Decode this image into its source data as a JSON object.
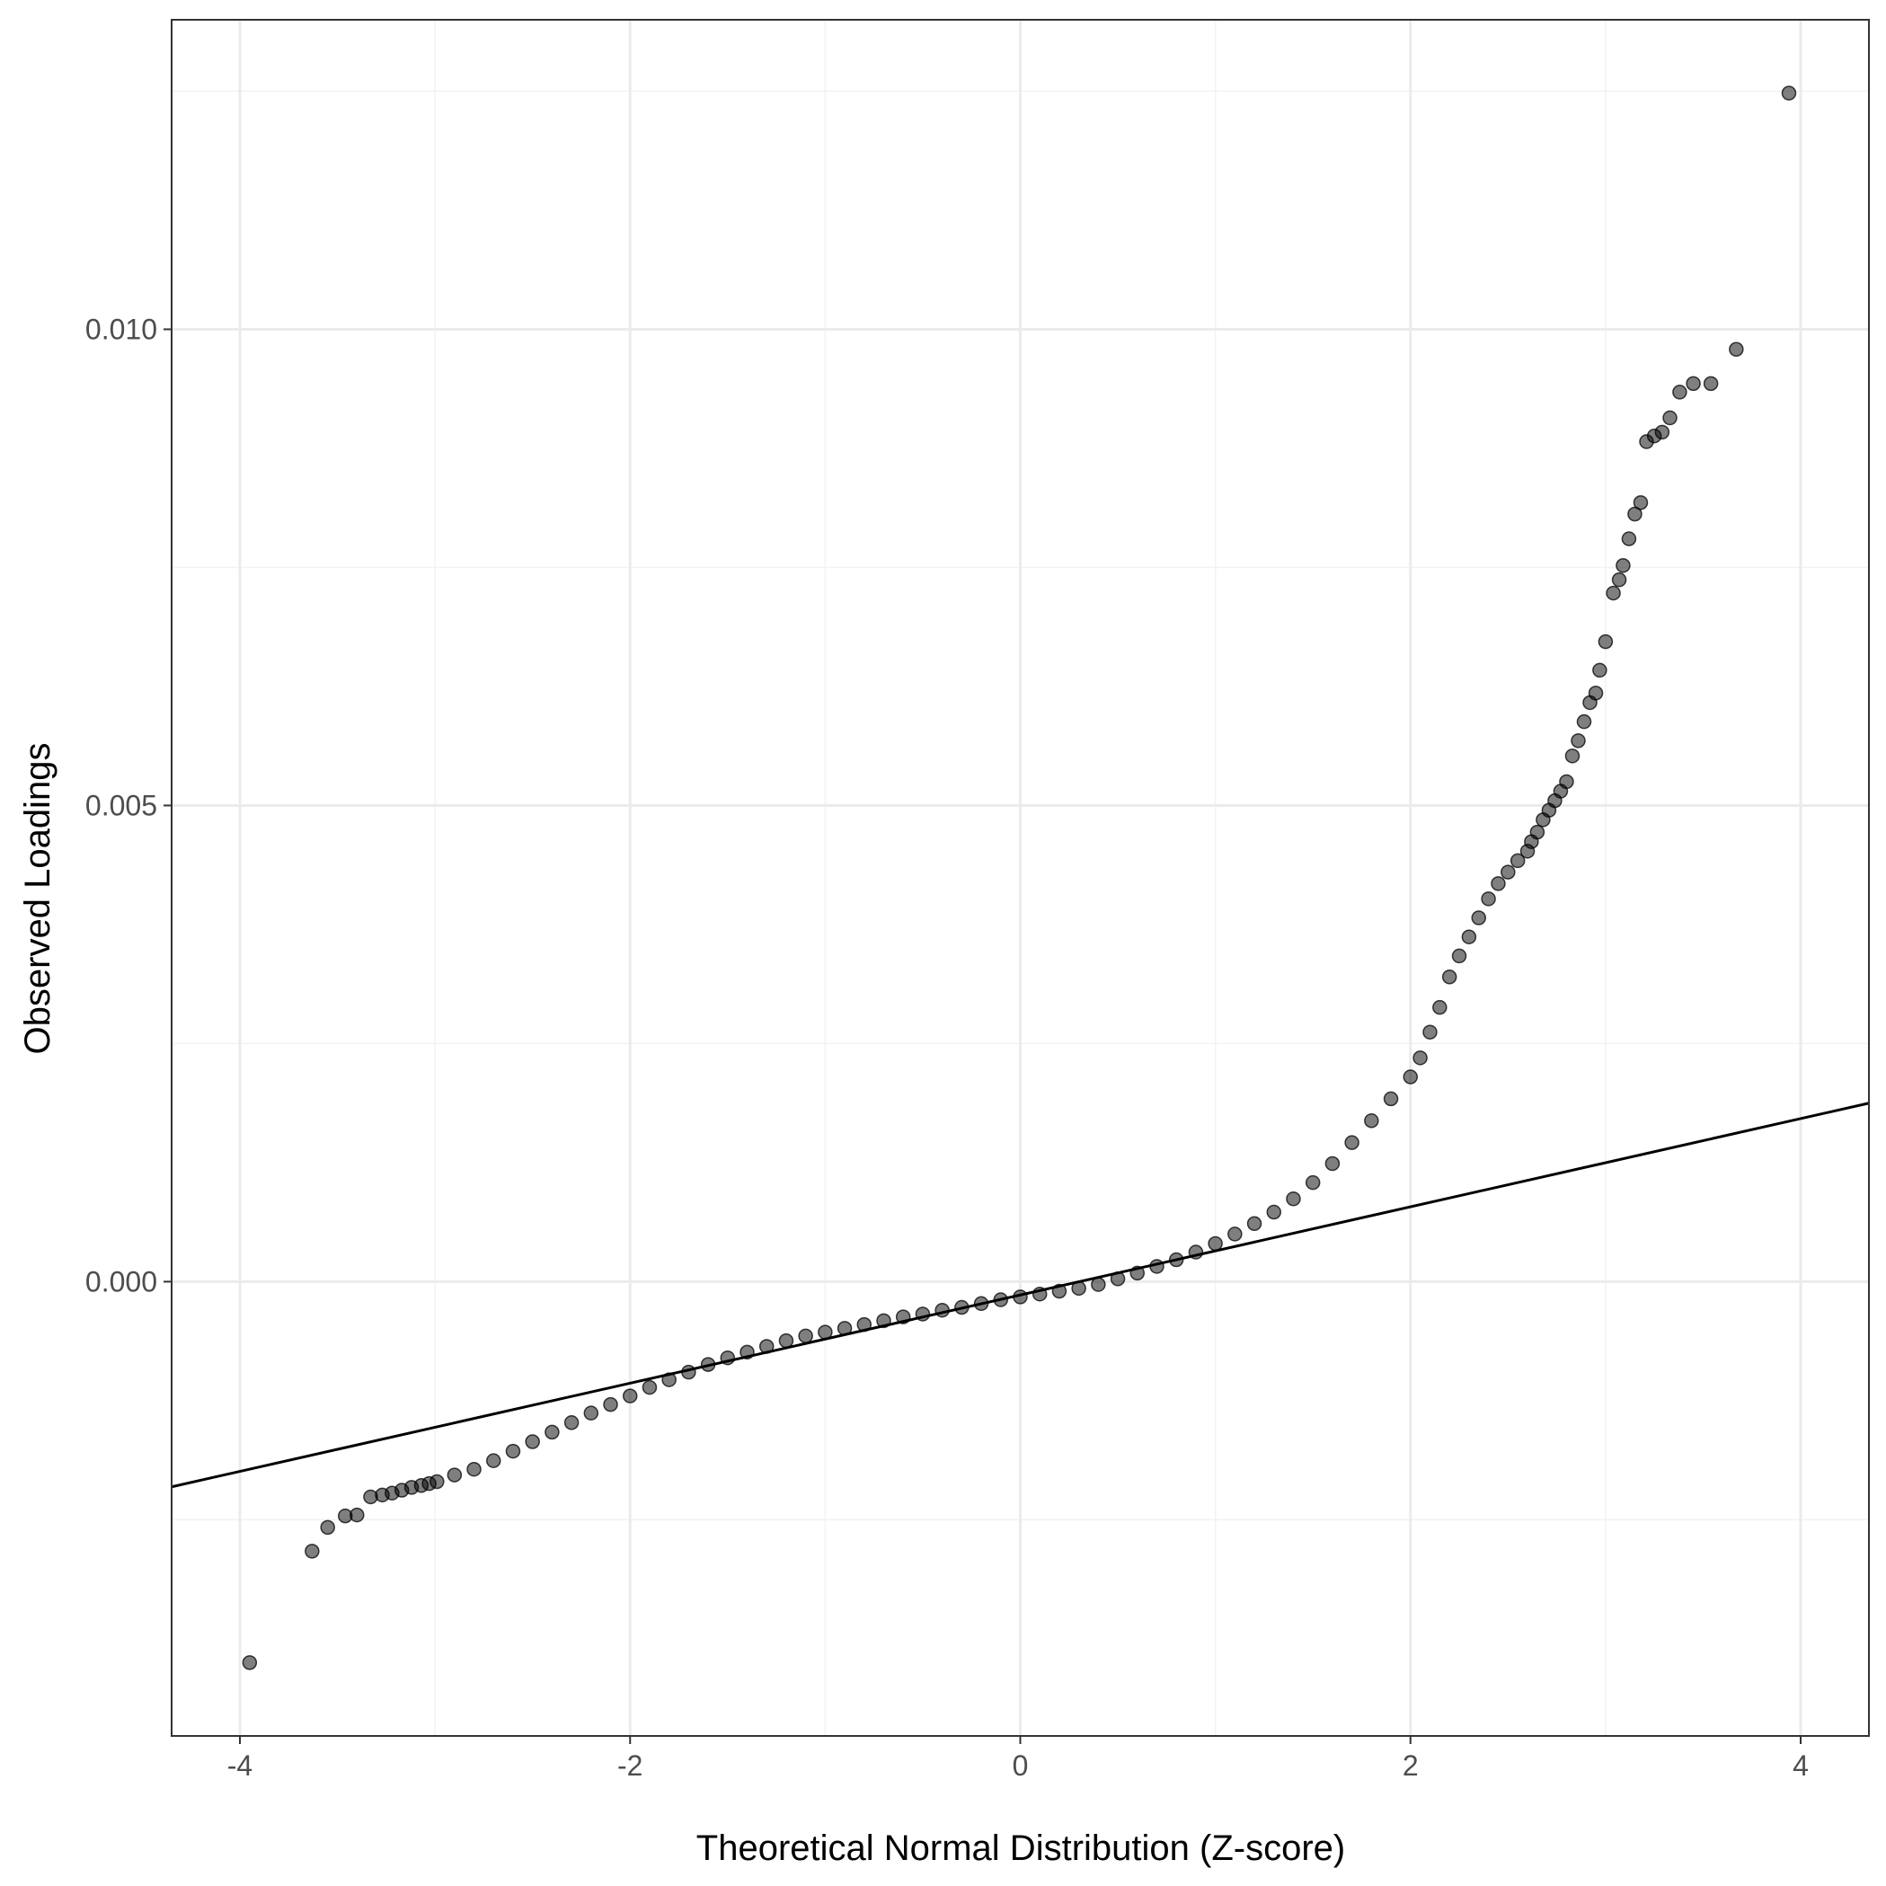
{
  "chart_data": {
    "type": "scatter",
    "title": "",
    "xlabel": "Theoretical Normal Distribution (Z-score)",
    "ylabel": "Observed Loadings",
    "xlim": [
      -4.35,
      4.35
    ],
    "ylim": [
      -0.00477,
      0.01325
    ],
    "x_ticks": [
      -4,
      -2,
      0,
      2,
      4
    ],
    "x_tick_labels": [
      "-4",
      "-2",
      "0",
      "2",
      "4"
    ],
    "y_ticks": [
      0.0,
      0.005,
      0.01
    ],
    "y_tick_labels": [
      "0.000",
      "0.005",
      "0.010"
    ],
    "grid": true,
    "legend": "none",
    "reference_line": {
      "slope": 0.000463,
      "intercept": -0.00014
    },
    "series": [
      {
        "color": "#000000",
        "points": [
          [
            -3.95,
            -0.004
          ],
          [
            -3.63,
            -0.00283
          ],
          [
            -3.55,
            -0.00258
          ],
          [
            -3.46,
            -0.00246
          ],
          [
            -3.4,
            -0.00245
          ],
          [
            -3.33,
            -0.00226
          ],
          [
            -3.27,
            -0.00224
          ],
          [
            -3.22,
            -0.00222
          ],
          [
            -3.17,
            -0.00219
          ],
          [
            -3.12,
            -0.00216
          ],
          [
            -3.07,
            -0.00214
          ],
          [
            -3.03,
            -0.00212
          ],
          [
            -2.99,
            -0.0021
          ],
          [
            -2.9,
            -0.00203
          ],
          [
            -2.8,
            -0.00197
          ],
          [
            -2.7,
            -0.00188
          ],
          [
            -2.6,
            -0.00178
          ],
          [
            -2.5,
            -0.00168
          ],
          [
            -2.4,
            -0.00158
          ],
          [
            -2.3,
            -0.00148
          ],
          [
            -2.2,
            -0.00138
          ],
          [
            -2.1,
            -0.00129
          ],
          [
            -2.0,
            -0.0012
          ],
          [
            -1.9,
            -0.00111
          ],
          [
            -1.8,
            -0.00103
          ],
          [
            -1.7,
            -0.00095
          ],
          [
            -1.6,
            -0.00087
          ],
          [
            -1.5,
            -0.0008
          ],
          [
            -1.4,
            -0.00074
          ],
          [
            -1.3,
            -0.00068
          ],
          [
            -1.2,
            -0.00062
          ],
          [
            -1.1,
            -0.00057
          ],
          [
            -1.0,
            -0.00053
          ],
          [
            -0.9,
            -0.00049
          ],
          [
            -0.8,
            -0.00045
          ],
          [
            -0.7,
            -0.00041
          ],
          [
            -0.6,
            -0.00037
          ],
          [
            -0.5,
            -0.00034
          ],
          [
            -0.4,
            -0.0003
          ],
          [
            -0.3,
            -0.00027
          ],
          [
            -0.2,
            -0.00023
          ],
          [
            -0.1,
            -0.00019
          ],
          [
            0.0,
            -0.00016
          ],
          [
            0.1,
            -0.00013
          ],
          [
            0.2,
            -0.0001
          ],
          [
            0.3,
            -7e-05
          ],
          [
            0.4,
            -3e-05
          ],
          [
            0.5,
            3e-05
          ],
          [
            0.6,
            9e-05
          ],
          [
            0.7,
            0.00016
          ],
          [
            0.8,
            0.00023
          ],
          [
            0.9,
            0.00031
          ],
          [
            1.0,
            0.0004
          ],
          [
            1.1,
            0.0005
          ],
          [
            1.2,
            0.00061
          ],
          [
            1.3,
            0.00073
          ],
          [
            1.4,
            0.00087
          ],
          [
            1.5,
            0.00104
          ],
          [
            1.6,
            0.00124
          ],
          [
            1.7,
            0.00146
          ],
          [
            1.8,
            0.00169
          ],
          [
            1.9,
            0.00192
          ],
          [
            2.0,
            0.00215
          ],
          [
            2.05,
            0.00235
          ],
          [
            2.1,
            0.00262
          ],
          [
            2.15,
            0.00288
          ],
          [
            2.2,
            0.0032
          ],
          [
            2.25,
            0.00342
          ],
          [
            2.3,
            0.00362
          ],
          [
            2.35,
            0.00382
          ],
          [
            2.4,
            0.00402
          ],
          [
            2.45,
            0.00418
          ],
          [
            2.5,
            0.0043
          ],
          [
            2.55,
            0.00442
          ],
          [
            2.6,
            0.00452
          ],
          [
            2.62,
            0.00462
          ],
          [
            2.65,
            0.00472
          ],
          [
            2.68,
            0.00485
          ],
          [
            2.71,
            0.00495
          ],
          [
            2.74,
            0.00505
          ],
          [
            2.77,
            0.00515
          ],
          [
            2.8,
            0.00525
          ],
          [
            2.83,
            0.00552
          ],
          [
            2.86,
            0.00568
          ],
          [
            2.89,
            0.00588
          ],
          [
            2.92,
            0.00608
          ],
          [
            2.95,
            0.00618
          ],
          [
            2.97,
            0.00642
          ],
          [
            3.0,
            0.00672
          ],
          [
            3.04,
            0.00723
          ],
          [
            3.07,
            0.00737
          ],
          [
            3.09,
            0.00752
          ],
          [
            3.12,
            0.0078
          ],
          [
            3.15,
            0.00806
          ],
          [
            3.18,
            0.00818
          ],
          [
            3.21,
            0.00882
          ],
          [
            3.25,
            0.00888
          ],
          [
            3.29,
            0.00892
          ],
          [
            3.33,
            0.00907
          ],
          [
            3.38,
            0.00934
          ],
          [
            3.45,
            0.00943
          ],
          [
            3.54,
            0.00943
          ],
          [
            3.67,
            0.00979
          ],
          [
            3.94,
            0.01248
          ]
        ]
      }
    ]
  }
}
